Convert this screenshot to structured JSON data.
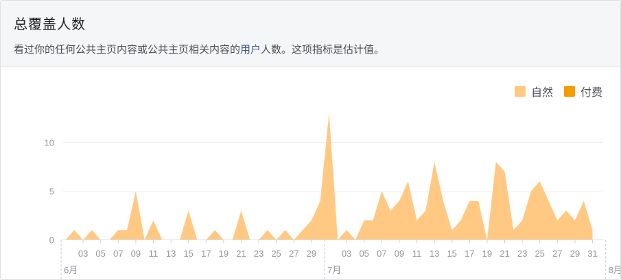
{
  "header": {
    "title": "总覆盖人数",
    "description_before": "看过你的任何公共主页内容或公共主页相关内容的",
    "description_link": "用户",
    "description_after": "人数。这项指标是估计值。"
  },
  "chart_data": {
    "type": "area",
    "legend_position": "top-right",
    "grid": true,
    "ylim": [
      0,
      13
    ],
    "y_ticks": [
      0,
      5,
      10
    ],
    "series": [
      {
        "name": "自然",
        "color": "#ffc983",
        "values": [
          0,
          1,
          0,
          1,
          0,
          0,
          1,
          1,
          5,
          0,
          2,
          0,
          0,
          0,
          3,
          0,
          0,
          1,
          0,
          0,
          3,
          0,
          0,
          1,
          0,
          1,
          0,
          1,
          2,
          4,
          13,
          0,
          1,
          0,
          2,
          2,
          5,
          3,
          4,
          6,
          2,
          3,
          8,
          4,
          1,
          2,
          4,
          4,
          0,
          8,
          7,
          1,
          2,
          5,
          6,
          4,
          2,
          3,
          2,
          4,
          1
        ]
      },
      {
        "name": "付费",
        "color": "#f79c00",
        "values": []
      }
    ],
    "x_day_labels": [
      "03",
      "05",
      "07",
      "09",
      "11",
      "13",
      "15",
      "17",
      "19",
      "21",
      "23",
      "25",
      "27",
      "29",
      "03",
      "05",
      "07",
      "09",
      "11",
      "13",
      "15",
      "17",
      "19",
      "21",
      "23",
      "25",
      "27",
      "29",
      "31"
    ],
    "month_labels": [
      "6月",
      "7月",
      "8月"
    ]
  }
}
